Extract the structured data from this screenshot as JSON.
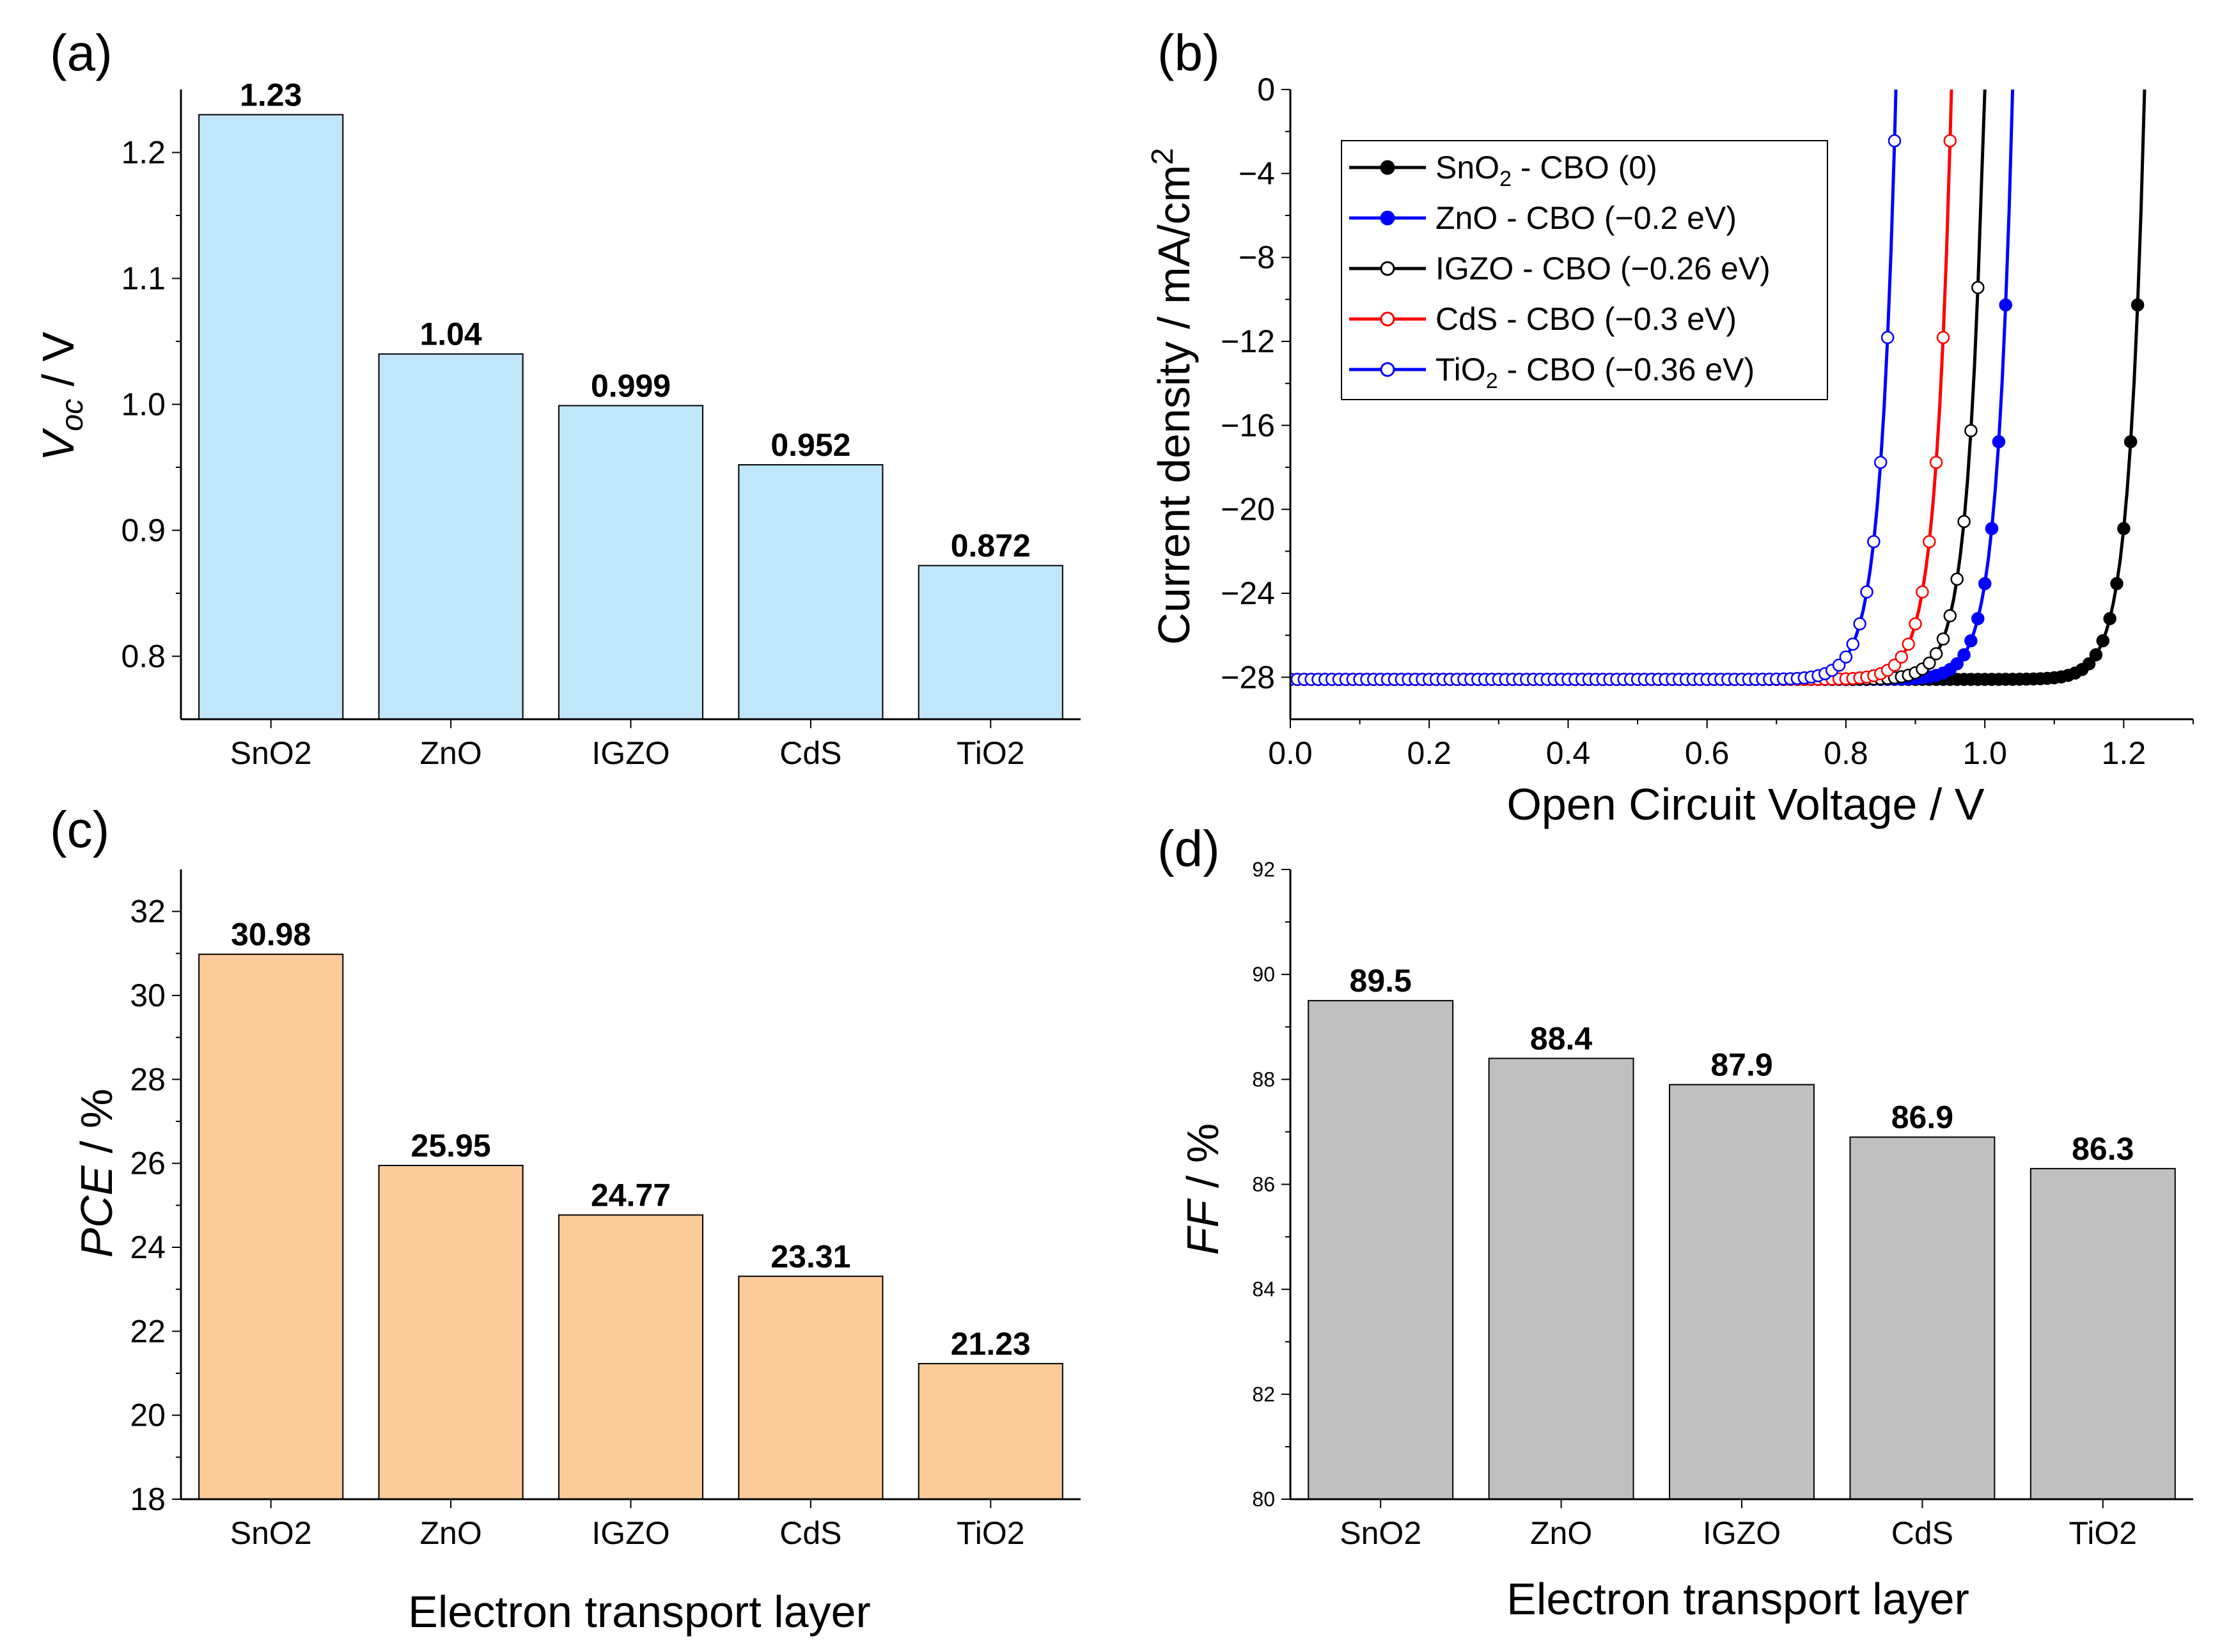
{
  "chart_data": [
    {
      "panel": "(a)",
      "type": "bar",
      "categories": [
        "SnO2",
        "ZnO",
        "IGZO",
        "CdS",
        "TiO2"
      ],
      "values": [
        1.23,
        1.04,
        0.999,
        0.952,
        0.872
      ],
      "value_labels": [
        "1.23",
        "1.04",
        "0.999",
        "0.952",
        "0.872"
      ],
      "ylabel_main": "V",
      "ylabel_sub": "oc",
      "ylabel_rest": " / V",
      "xlabel": "",
      "ylim": [
        0.75,
        1.25
      ],
      "yticks": [
        0.8,
        0.9,
        1.0,
        1.1,
        1.2
      ],
      "ytick_labels": [
        "0.8",
        "0.9",
        "1.0",
        "1.1",
        "1.2"
      ],
      "color": "#bfe6fa"
    },
    {
      "panel": "(b)",
      "type": "line",
      "xlabel": "Open Circuit Voltage / V",
      "ylabel": "Current density / mA/cm",
      "ylabel_sup": "2",
      "xlim": [
        0.0,
        1.3
      ],
      "ylim": [
        -30,
        0
      ],
      "xticks": [
        0.0,
        0.2,
        0.4,
        0.6,
        0.8,
        1.0,
        1.2
      ],
      "xtick_labels": [
        "0.0",
        "0.2",
        "0.4",
        "0.6",
        "0.8",
        "1.0",
        "1.2"
      ],
      "yticks": [
        0,
        -4,
        -8,
        -12,
        -16,
        -20,
        -24,
        -28
      ],
      "ytick_labels": [
        "0",
        "−4",
        "−8",
        "−12",
        "−16",
        "−20",
        "−24",
        "−28"
      ],
      "jsc": -28.1,
      "series": [
        {
          "name": "SnO2 - CBO (0)",
          "label_main": "SnO",
          "label_sub": "2",
          "label_rest": " - CBO (0)",
          "voc": 1.23,
          "color": "#000000",
          "marker": "filled"
        },
        {
          "name": "ZnO - CBO (−0.2 eV)",
          "label_main": "ZnO - CBO (−0.2 eV)",
          "label_sub": "",
          "label_rest": "",
          "voc": 1.04,
          "color": "#0000ff",
          "marker": "filled"
        },
        {
          "name": "IGZO - CBO (−0.26 eV)",
          "label_main": "IGZO - CBO (−0.26 eV)",
          "label_sub": "",
          "label_rest": "",
          "voc": 0.999,
          "color": "#000000",
          "marker": "open"
        },
        {
          "name": "CdS - CBO (−0.3 eV)",
          "label_main": "CdS - CBO (−0.3 eV)",
          "label_sub": "",
          "label_rest": "",
          "voc": 0.952,
          "color": "#ff0000",
          "marker": "open"
        },
        {
          "name": "TiO2 - CBO (−0.36 eV)",
          "label_main": "TiO",
          "label_sub": "2",
          "label_rest": " - CBO (−0.36 eV)",
          "voc": 0.872,
          "color": "#0000ff",
          "marker": "open"
        }
      ]
    },
    {
      "panel": "(c)",
      "type": "bar",
      "categories": [
        "SnO2",
        "ZnO",
        "IGZO",
        "CdS",
        "TiO2"
      ],
      "values": [
        30.98,
        25.95,
        24.77,
        23.31,
        21.23
      ],
      "value_labels": [
        "30.98",
        "25.95",
        "24.77",
        "23.31",
        "21.23"
      ],
      "ylabel": "PCE",
      "ylabel_rest": " / %",
      "xlabel": "Electron transport layer",
      "ylim": [
        18,
        33
      ],
      "yticks": [
        18,
        20,
        22,
        24,
        26,
        28,
        30,
        32
      ],
      "ytick_labels": [
        "18",
        "20",
        "22",
        "24",
        "26",
        "28",
        "30",
        "32"
      ],
      "color": "#fbcb9a"
    },
    {
      "panel": "(d)",
      "type": "bar",
      "categories": [
        "SnO2",
        "ZnO",
        "IGZO",
        "CdS",
        "TiO2"
      ],
      "values": [
        89.5,
        88.4,
        87.9,
        86.9,
        86.3
      ],
      "value_labels": [
        "89.5",
        "88.4",
        "87.9",
        "86.9",
        "86.3"
      ],
      "ylabel": "FF",
      "ylabel_rest": " / %",
      "xlabel": "Electron transport layer",
      "ylim": [
        80,
        92
      ],
      "yticks": [
        80,
        82,
        84,
        86,
        88,
        90,
        92
      ],
      "ytick_labels": [
        "80",
        "82",
        "84",
        "86",
        "88",
        "90",
        "92"
      ],
      "color": "#c0c0c0"
    }
  ]
}
